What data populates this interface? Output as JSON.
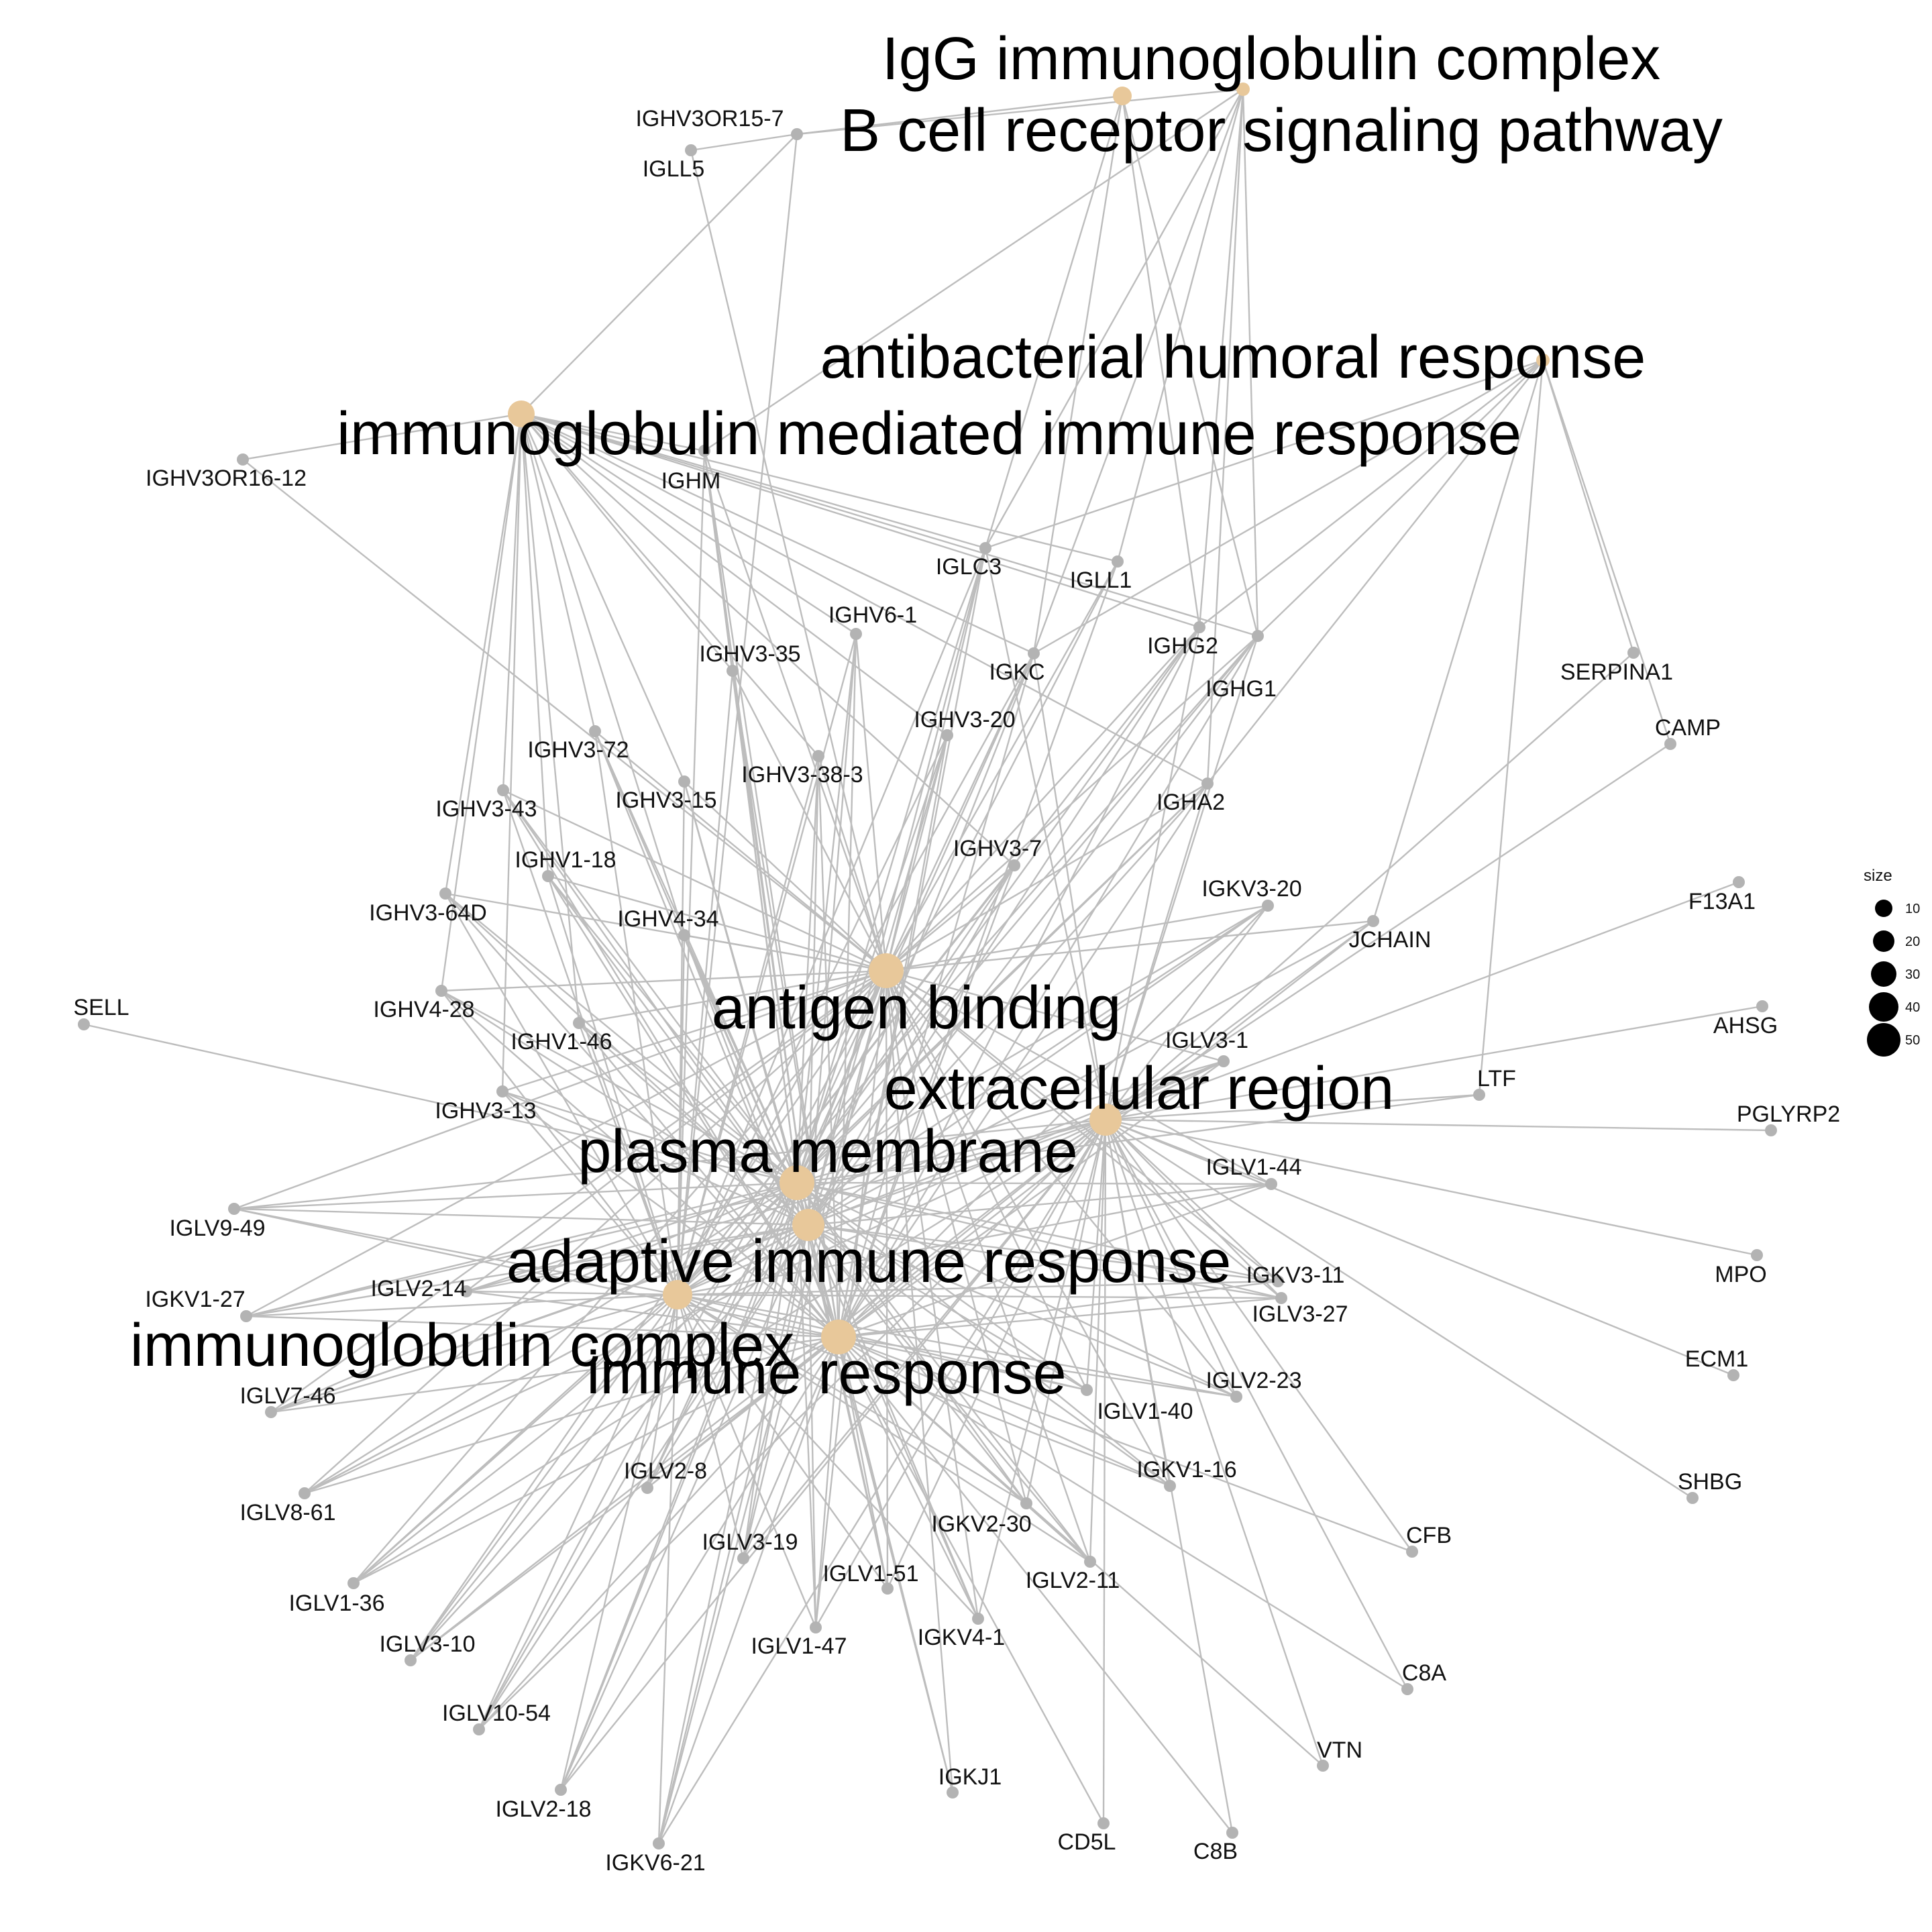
{
  "colors": {
    "term": "#e8c89a",
    "gene": "#b3b3b3",
    "edge": "#bdbdbd"
  },
  "legend": {
    "title": "size",
    "items": [
      "10",
      "20",
      "30",
      "40",
      "50"
    ]
  },
  "terms": [
    {
      "id": "igg",
      "label": "IgG immunoglobulin complex"
    },
    {
      "id": "bcr",
      "label": "B cell receptor signaling pathway"
    },
    {
      "id": "abh",
      "label": "antibacterial humoral response"
    },
    {
      "id": "imr",
      "label": "immunoglobulin mediated immune response"
    },
    {
      "id": "ab",
      "label": "antigen binding"
    },
    {
      "id": "er",
      "label": "extracellular region"
    },
    {
      "id": "pm",
      "label": "plasma membrane"
    },
    {
      "id": "air",
      "label": "adaptive immune response"
    },
    {
      "id": "ic",
      "label": "immunoglobulin complex"
    },
    {
      "id": "ir",
      "label": "immune response"
    }
  ],
  "genes": [
    {
      "id": "IGHV3OR15-7",
      "label": "IGHV3OR15-7"
    },
    {
      "id": "IGLL5",
      "label": "IGLL5"
    },
    {
      "id": "IGHV3OR16-12",
      "label": "IGHV3OR16-12"
    },
    {
      "id": "IGHM",
      "label": "IGHM"
    },
    {
      "id": "IGLC3",
      "label": "IGLC3"
    },
    {
      "id": "IGLL1",
      "label": "IGLL1"
    },
    {
      "id": "IGHV6-1",
      "label": "IGHV6-1"
    },
    {
      "id": "IGHV3-35",
      "label": "IGHV3-35"
    },
    {
      "id": "IGKC",
      "label": "IGKC"
    },
    {
      "id": "IGHG2",
      "label": "IGHG2"
    },
    {
      "id": "IGHG1",
      "label": "IGHG1"
    },
    {
      "id": "SERPINA1",
      "label": "SERPINA1"
    },
    {
      "id": "CAMP",
      "label": "CAMP"
    },
    {
      "id": "IGHV3-20",
      "label": "IGHV3-20"
    },
    {
      "id": "IGHV3-72",
      "label": "IGHV3-72"
    },
    {
      "id": "IGHV3-38-3",
      "label": "IGHV3-38-3"
    },
    {
      "id": "IGHV3-15",
      "label": "IGHV3-15"
    },
    {
      "id": "IGHV3-43",
      "label": "IGHV3-43"
    },
    {
      "id": "IGHA2",
      "label": "IGHA2"
    },
    {
      "id": "IGHV1-18",
      "label": "IGHV1-18"
    },
    {
      "id": "IGHV3-7",
      "label": "IGHV3-7"
    },
    {
      "id": "IGHV3-64D",
      "label": "IGHV3-64D"
    },
    {
      "id": "IGKV3-20",
      "label": "IGKV3-20"
    },
    {
      "id": "F13A1",
      "label": "F13A1"
    },
    {
      "id": "IGHV4-34",
      "label": "IGHV4-34"
    },
    {
      "id": "JCHAIN",
      "label": "JCHAIN"
    },
    {
      "id": "SELL",
      "label": "SELL"
    },
    {
      "id": "IGHV4-28",
      "label": "IGHV4-28"
    },
    {
      "id": "AHSG",
      "label": "AHSG"
    },
    {
      "id": "IGHV1-46",
      "label": "IGHV1-46"
    },
    {
      "id": "IGLV3-1",
      "label": "IGLV3-1"
    },
    {
      "id": "LTF",
      "label": "LTF"
    },
    {
      "id": "IGHV3-13",
      "label": "IGHV3-13"
    },
    {
      "id": "PGLYRP2",
      "label": "PGLYRP2"
    },
    {
      "id": "IGLV1-44",
      "label": "IGLV1-44"
    },
    {
      "id": "IGLV9-49",
      "label": "IGLV9-49"
    },
    {
      "id": "MPO",
      "label": "MPO"
    },
    {
      "id": "IGKV3-11",
      "label": "IGKV3-11"
    },
    {
      "id": "IGKV1-27",
      "label": "IGKV1-27"
    },
    {
      "id": "IGLV2-14",
      "label": "IGLV2-14"
    },
    {
      "id": "IGLV3-27",
      "label": "IGLV3-27"
    },
    {
      "id": "ECM1",
      "label": "ECM1"
    },
    {
      "id": "IGLV7-46",
      "label": "IGLV7-46"
    },
    {
      "id": "IGLV2-23",
      "label": "IGLV2-23"
    },
    {
      "id": "IGLV1-40",
      "label": "IGLV1-40"
    },
    {
      "id": "IGKV1-16",
      "label": "IGKV1-16"
    },
    {
      "id": "SHBG",
      "label": "SHBG"
    },
    {
      "id": "IGLV2-8",
      "label": "IGLV2-8"
    },
    {
      "id": "IGLV8-61",
      "label": "IGLV8-61"
    },
    {
      "id": "IGKV2-30",
      "label": "IGKV2-30"
    },
    {
      "id": "CFB",
      "label": "CFB"
    },
    {
      "id": "IGLV3-19",
      "label": "IGLV3-19"
    },
    {
      "id": "IGLV1-51",
      "label": "IGLV1-51"
    },
    {
      "id": "IGLV2-11",
      "label": "IGLV2-11"
    },
    {
      "id": "IGLV1-36",
      "label": "IGLV1-36"
    },
    {
      "id": "IGLV3-10",
      "label": "IGLV3-10"
    },
    {
      "id": "IGLV1-47",
      "label": "IGLV1-47"
    },
    {
      "id": "IGKV4-1",
      "label": "IGKV4-1"
    },
    {
      "id": "C8A",
      "label": "C8A"
    },
    {
      "id": "IGLV10-54",
      "label": "IGLV10-54"
    },
    {
      "id": "VTN",
      "label": "VTN"
    },
    {
      "id": "IGKJ1",
      "label": "IGKJ1"
    },
    {
      "id": "IGLV2-18",
      "label": "IGLV2-18"
    },
    {
      "id": "CD5L",
      "label": "CD5L"
    },
    {
      "id": "C8B",
      "label": "C8B"
    },
    {
      "id": "IGKV6-21",
      "label": "IGKV6-21"
    }
  ],
  "edges": [
    [
      "igg",
      "IGHV3OR15-7"
    ],
    [
      "bcr",
      "IGHV3OR15-7"
    ],
    [
      "imr",
      "IGHV3OR15-7"
    ],
    [
      "IGLL5",
      "IGHV3OR15-7"
    ],
    [
      "ab",
      "IGLL5"
    ],
    [
      "ic",
      "IGHV3OR15-7"
    ],
    [
      "imr",
      "IGHV3OR16-12"
    ],
    [
      "ab",
      "IGHV3OR16-12"
    ],
    [
      "bcr",
      "IGHM"
    ],
    [
      "imr",
      "IGHM"
    ],
    [
      "ab",
      "IGHM"
    ],
    [
      "pm",
      "IGHM"
    ],
    [
      "air",
      "IGHM"
    ],
    [
      "ic",
      "IGHM"
    ],
    [
      "ir",
      "IGHM"
    ],
    [
      "igg",
      "IGLC3"
    ],
    [
      "bcr",
      "IGLC3"
    ],
    [
      "abh",
      "IGLC3"
    ],
    [
      "imr",
      "IGLC3"
    ],
    [
      "ab",
      "IGLC3"
    ],
    [
      "er",
      "IGLC3"
    ],
    [
      "pm",
      "IGLC3"
    ],
    [
      "air",
      "IGLC3"
    ],
    [
      "ic",
      "IGLC3"
    ],
    [
      "ir",
      "IGLC3"
    ],
    [
      "bcr",
      "IGLL1"
    ],
    [
      "imr",
      "IGLL1"
    ],
    [
      "ab",
      "IGLL1"
    ],
    [
      "pm",
      "IGLL1"
    ],
    [
      "ir",
      "IGLL1"
    ],
    [
      "imr",
      "IGHV6-1"
    ],
    [
      "ab",
      "IGHV6-1"
    ],
    [
      "pm",
      "IGHV6-1"
    ],
    [
      "air",
      "IGHV6-1"
    ],
    [
      "ic",
      "IGHV6-1"
    ],
    [
      "ir",
      "IGHV6-1"
    ],
    [
      "imr",
      "IGHV3-35"
    ],
    [
      "ab",
      "IGHV3-35"
    ],
    [
      "pm",
      "IGHV3-35"
    ],
    [
      "air",
      "IGHV3-35"
    ],
    [
      "ic",
      "IGHV3-35"
    ],
    [
      "ir",
      "IGHV3-35"
    ],
    [
      "igg",
      "IGKC"
    ],
    [
      "bcr",
      "IGKC"
    ],
    [
      "abh",
      "IGKC"
    ],
    [
      "imr",
      "IGKC"
    ],
    [
      "ab",
      "IGKC"
    ],
    [
      "er",
      "IGKC"
    ],
    [
      "pm",
      "IGKC"
    ],
    [
      "air",
      "IGKC"
    ],
    [
      "ic",
      "IGKC"
    ],
    [
      "ir",
      "IGKC"
    ],
    [
      "igg",
      "IGHG2"
    ],
    [
      "bcr",
      "IGHG2"
    ],
    [
      "abh",
      "IGHG2"
    ],
    [
      "imr",
      "IGHG2"
    ],
    [
      "ab",
      "IGHG2"
    ],
    [
      "er",
      "IGHG2"
    ],
    [
      "pm",
      "IGHG2"
    ],
    [
      "air",
      "IGHG2"
    ],
    [
      "ic",
      "IGHG2"
    ],
    [
      "ir",
      "IGHG2"
    ],
    [
      "igg",
      "IGHG1"
    ],
    [
      "bcr",
      "IGHG1"
    ],
    [
      "abh",
      "IGHG1"
    ],
    [
      "imr",
      "IGHG1"
    ],
    [
      "ab",
      "IGHG1"
    ],
    [
      "er",
      "IGHG1"
    ],
    [
      "pm",
      "IGHG1"
    ],
    [
      "air",
      "IGHG1"
    ],
    [
      "ic",
      "IGHG1"
    ],
    [
      "ir",
      "IGHG1"
    ],
    [
      "abh",
      "SERPINA1"
    ],
    [
      "er",
      "SERPINA1"
    ],
    [
      "abh",
      "CAMP"
    ],
    [
      "er",
      "CAMP"
    ],
    [
      "imr",
      "IGHV3-20"
    ],
    [
      "ab",
      "IGHV3-20"
    ],
    [
      "pm",
      "IGHV3-20"
    ],
    [
      "air",
      "IGHV3-20"
    ],
    [
      "ic",
      "IGHV3-20"
    ],
    [
      "ir",
      "IGHV3-20"
    ],
    [
      "imr",
      "IGHV3-72"
    ],
    [
      "ab",
      "IGHV3-72"
    ],
    [
      "pm",
      "IGHV3-72"
    ],
    [
      "air",
      "IGHV3-72"
    ],
    [
      "ic",
      "IGHV3-72"
    ],
    [
      "ir",
      "IGHV3-72"
    ],
    [
      "imr",
      "IGHV3-38-3"
    ],
    [
      "ab",
      "IGHV3-38-3"
    ],
    [
      "pm",
      "IGHV3-38-3"
    ],
    [
      "air",
      "IGHV3-38-3"
    ],
    [
      "ic",
      "IGHV3-38-3"
    ],
    [
      "ir",
      "IGHV3-38-3"
    ],
    [
      "imr",
      "IGHV3-15"
    ],
    [
      "ab",
      "IGHV3-15"
    ],
    [
      "pm",
      "IGHV3-15"
    ],
    [
      "air",
      "IGHV3-15"
    ],
    [
      "ic",
      "IGHV3-15"
    ],
    [
      "ir",
      "IGHV3-15"
    ],
    [
      "imr",
      "IGHV3-43"
    ],
    [
      "ab",
      "IGHV3-43"
    ],
    [
      "pm",
      "IGHV3-43"
    ],
    [
      "air",
      "IGHV3-43"
    ],
    [
      "ic",
      "IGHV3-43"
    ],
    [
      "ir",
      "IGHV3-43"
    ],
    [
      "bcr",
      "IGHA2"
    ],
    [
      "abh",
      "IGHA2"
    ],
    [
      "imr",
      "IGHA2"
    ],
    [
      "ab",
      "IGHA2"
    ],
    [
      "er",
      "IGHA2"
    ],
    [
      "pm",
      "IGHA2"
    ],
    [
      "air",
      "IGHA2"
    ],
    [
      "ic",
      "IGHA2"
    ],
    [
      "ir",
      "IGHA2"
    ],
    [
      "imr",
      "IGHV1-18"
    ],
    [
      "ab",
      "IGHV1-18"
    ],
    [
      "pm",
      "IGHV1-18"
    ],
    [
      "air",
      "IGHV1-18"
    ],
    [
      "ic",
      "IGHV1-18"
    ],
    [
      "ir",
      "IGHV1-18"
    ],
    [
      "imr",
      "IGHV3-7"
    ],
    [
      "ab",
      "IGHV3-7"
    ],
    [
      "pm",
      "IGHV3-7"
    ],
    [
      "air",
      "IGHV3-7"
    ],
    [
      "ic",
      "IGHV3-7"
    ],
    [
      "ir",
      "IGHV3-7"
    ],
    [
      "imr",
      "IGHV3-64D"
    ],
    [
      "ab",
      "IGHV3-64D"
    ],
    [
      "pm",
      "IGHV3-64D"
    ],
    [
      "air",
      "IGHV3-64D"
    ],
    [
      "ic",
      "IGHV3-64D"
    ],
    [
      "ir",
      "IGHV3-64D"
    ],
    [
      "ab",
      "IGKV3-20"
    ],
    [
      "er",
      "IGKV3-20"
    ],
    [
      "pm",
      "IGKV3-20"
    ],
    [
      "air",
      "IGKV3-20"
    ],
    [
      "ic",
      "IGKV3-20"
    ],
    [
      "ir",
      "IGKV3-20"
    ],
    [
      "er",
      "F13A1"
    ],
    [
      "imr",
      "IGHV4-34"
    ],
    [
      "ab",
      "IGHV4-34"
    ],
    [
      "pm",
      "IGHV4-34"
    ],
    [
      "air",
      "IGHV4-34"
    ],
    [
      "ic",
      "IGHV4-34"
    ],
    [
      "ir",
      "IGHV4-34"
    ],
    [
      "abh",
      "JCHAIN"
    ],
    [
      "ab",
      "JCHAIN"
    ],
    [
      "er",
      "JCHAIN"
    ],
    [
      "ic",
      "JCHAIN"
    ],
    [
      "ir",
      "JCHAIN"
    ],
    [
      "pm",
      "SELL"
    ],
    [
      "imr",
      "IGHV4-28"
    ],
    [
      "ab",
      "IGHV4-28"
    ],
    [
      "pm",
      "IGHV4-28"
    ],
    [
      "air",
      "IGHV4-28"
    ],
    [
      "ic",
      "IGHV4-28"
    ],
    [
      "ir",
      "IGHV4-28"
    ],
    [
      "er",
      "AHSG"
    ],
    [
      "imr",
      "IGHV1-46"
    ],
    [
      "ab",
      "IGHV1-46"
    ],
    [
      "pm",
      "IGHV1-46"
    ],
    [
      "air",
      "IGHV1-46"
    ],
    [
      "ic",
      "IGHV1-46"
    ],
    [
      "ir",
      "IGHV1-46"
    ],
    [
      "ab",
      "IGLV3-1"
    ],
    [
      "er",
      "IGLV3-1"
    ],
    [
      "pm",
      "IGLV3-1"
    ],
    [
      "air",
      "IGLV3-1"
    ],
    [
      "ic",
      "IGLV3-1"
    ],
    [
      "ir",
      "IGLV3-1"
    ],
    [
      "abh",
      "LTF"
    ],
    [
      "er",
      "LTF"
    ],
    [
      "pm",
      "LTF"
    ],
    [
      "imr",
      "IGHV3-13"
    ],
    [
      "ab",
      "IGHV3-13"
    ],
    [
      "pm",
      "IGHV3-13"
    ],
    [
      "air",
      "IGHV3-13"
    ],
    [
      "ic",
      "IGHV3-13"
    ],
    [
      "ir",
      "IGHV3-13"
    ],
    [
      "er",
      "PGLYRP2"
    ],
    [
      "ab",
      "IGLV1-44"
    ],
    [
      "er",
      "IGLV1-44"
    ],
    [
      "pm",
      "IGLV1-44"
    ],
    [
      "air",
      "IGLV1-44"
    ],
    [
      "ic",
      "IGLV1-44"
    ],
    [
      "ir",
      "IGLV1-44"
    ],
    [
      "ab",
      "IGLV9-49"
    ],
    [
      "er",
      "IGLV9-49"
    ],
    [
      "pm",
      "IGLV9-49"
    ],
    [
      "air",
      "IGLV9-49"
    ],
    [
      "ic",
      "IGLV9-49"
    ],
    [
      "ir",
      "IGLV9-49"
    ],
    [
      "er",
      "MPO"
    ],
    [
      "ab",
      "IGKV3-11"
    ],
    [
      "er",
      "IGKV3-11"
    ],
    [
      "pm",
      "IGKV3-11"
    ],
    [
      "air",
      "IGKV3-11"
    ],
    [
      "ic",
      "IGKV3-11"
    ],
    [
      "ir",
      "IGKV3-11"
    ],
    [
      "ab",
      "IGKV1-27"
    ],
    [
      "er",
      "IGKV1-27"
    ],
    [
      "pm",
      "IGKV1-27"
    ],
    [
      "air",
      "IGKV1-27"
    ],
    [
      "ic",
      "IGKV1-27"
    ],
    [
      "ir",
      "IGKV1-27"
    ],
    [
      "ab",
      "IGLV2-14"
    ],
    [
      "er",
      "IGLV2-14"
    ],
    [
      "pm",
      "IGLV2-14"
    ],
    [
      "air",
      "IGLV2-14"
    ],
    [
      "ic",
      "IGLV2-14"
    ],
    [
      "ir",
      "IGLV2-14"
    ],
    [
      "ab",
      "IGLV3-27"
    ],
    [
      "er",
      "IGLV3-27"
    ],
    [
      "pm",
      "IGLV3-27"
    ],
    [
      "air",
      "IGLV3-27"
    ],
    [
      "ic",
      "IGLV3-27"
    ],
    [
      "ir",
      "IGLV3-27"
    ],
    [
      "er",
      "ECM1"
    ],
    [
      "ab",
      "IGLV7-46"
    ],
    [
      "er",
      "IGLV7-46"
    ],
    [
      "pm",
      "IGLV7-46"
    ],
    [
      "air",
      "IGLV7-46"
    ],
    [
      "ic",
      "IGLV7-46"
    ],
    [
      "ir",
      "IGLV7-46"
    ],
    [
      "ab",
      "IGLV2-23"
    ],
    [
      "er",
      "IGLV2-23"
    ],
    [
      "pm",
      "IGLV2-23"
    ],
    [
      "air",
      "IGLV2-23"
    ],
    [
      "ic",
      "IGLV2-23"
    ],
    [
      "ir",
      "IGLV2-23"
    ],
    [
      "ab",
      "IGLV1-40"
    ],
    [
      "er",
      "IGLV1-40"
    ],
    [
      "pm",
      "IGLV1-40"
    ],
    [
      "air",
      "IGLV1-40"
    ],
    [
      "ic",
      "IGLV1-40"
    ],
    [
      "ir",
      "IGLV1-40"
    ],
    [
      "ab",
      "IGKV1-16"
    ],
    [
      "er",
      "IGKV1-16"
    ],
    [
      "pm",
      "IGKV1-16"
    ],
    [
      "air",
      "IGKV1-16"
    ],
    [
      "ic",
      "IGKV1-16"
    ],
    [
      "ir",
      "IGKV1-16"
    ],
    [
      "er",
      "SHBG"
    ],
    [
      "ab",
      "IGLV2-8"
    ],
    [
      "er",
      "IGLV2-8"
    ],
    [
      "pm",
      "IGLV2-8"
    ],
    [
      "air",
      "IGLV2-8"
    ],
    [
      "ic",
      "IGLV2-8"
    ],
    [
      "ir",
      "IGLV2-8"
    ],
    [
      "ab",
      "IGLV8-61"
    ],
    [
      "er",
      "IGLV8-61"
    ],
    [
      "pm",
      "IGLV8-61"
    ],
    [
      "air",
      "IGLV8-61"
    ],
    [
      "ic",
      "IGLV8-61"
    ],
    [
      "ir",
      "IGLV8-61"
    ],
    [
      "ab",
      "IGKV2-30"
    ],
    [
      "er",
      "IGKV2-30"
    ],
    [
      "pm",
      "IGKV2-30"
    ],
    [
      "air",
      "IGKV2-30"
    ],
    [
      "ic",
      "IGKV2-30"
    ],
    [
      "ir",
      "IGKV2-30"
    ],
    [
      "er",
      "CFB"
    ],
    [
      "ir",
      "CFB"
    ],
    [
      "ab",
      "IGLV3-19"
    ],
    [
      "er",
      "IGLV3-19"
    ],
    [
      "pm",
      "IGLV3-19"
    ],
    [
      "air",
      "IGLV3-19"
    ],
    [
      "ic",
      "IGLV3-19"
    ],
    [
      "ir",
      "IGLV3-19"
    ],
    [
      "ab",
      "IGLV1-51"
    ],
    [
      "er",
      "IGLV1-51"
    ],
    [
      "pm",
      "IGLV1-51"
    ],
    [
      "air",
      "IGLV1-51"
    ],
    [
      "ic",
      "IGLV1-51"
    ],
    [
      "ir",
      "IGLV1-51"
    ],
    [
      "ab",
      "IGLV2-11"
    ],
    [
      "er",
      "IGLV2-11"
    ],
    [
      "pm",
      "IGLV2-11"
    ],
    [
      "air",
      "IGLV2-11"
    ],
    [
      "ic",
      "IGLV2-11"
    ],
    [
      "ir",
      "IGLV2-11"
    ],
    [
      "ab",
      "IGLV1-36"
    ],
    [
      "er",
      "IGLV1-36"
    ],
    [
      "pm",
      "IGLV1-36"
    ],
    [
      "air",
      "IGLV1-36"
    ],
    [
      "ic",
      "IGLV1-36"
    ],
    [
      "ir",
      "IGLV1-36"
    ],
    [
      "ab",
      "IGLV3-10"
    ],
    [
      "er",
      "IGLV3-10"
    ],
    [
      "pm",
      "IGLV3-10"
    ],
    [
      "air",
      "IGLV3-10"
    ],
    [
      "ic",
      "IGLV3-10"
    ],
    [
      "ir",
      "IGLV3-10"
    ],
    [
      "ab",
      "IGLV1-47"
    ],
    [
      "er",
      "IGLV1-47"
    ],
    [
      "pm",
      "IGLV1-47"
    ],
    [
      "air",
      "IGLV1-47"
    ],
    [
      "ic",
      "IGLV1-47"
    ],
    [
      "ir",
      "IGLV1-47"
    ],
    [
      "ab",
      "IGKV4-1"
    ],
    [
      "er",
      "IGKV4-1"
    ],
    [
      "pm",
      "IGKV4-1"
    ],
    [
      "air",
      "IGKV4-1"
    ],
    [
      "ic",
      "IGKV4-1"
    ],
    [
      "ir",
      "IGKV4-1"
    ],
    [
      "er",
      "C8A"
    ],
    [
      "ir",
      "C8A"
    ],
    [
      "ab",
      "IGLV10-54"
    ],
    [
      "er",
      "IGLV10-54"
    ],
    [
      "pm",
      "IGLV10-54"
    ],
    [
      "air",
      "IGLV10-54"
    ],
    [
      "ic",
      "IGLV10-54"
    ],
    [
      "ir",
      "IGLV10-54"
    ],
    [
      "er",
      "VTN"
    ],
    [
      "ir",
      "VTN"
    ],
    [
      "ab",
      "IGKJ1"
    ],
    [
      "pm",
      "IGKJ1"
    ],
    [
      "ir",
      "IGKJ1"
    ],
    [
      "ab",
      "IGLV2-18"
    ],
    [
      "er",
      "IGLV2-18"
    ],
    [
      "pm",
      "IGLV2-18"
    ],
    [
      "air",
      "IGLV2-18"
    ],
    [
      "ic",
      "IGLV2-18"
    ],
    [
      "ir",
      "IGLV2-18"
    ],
    [
      "er",
      "CD5L"
    ],
    [
      "ir",
      "CD5L"
    ],
    [
      "er",
      "C8B"
    ],
    [
      "ir",
      "C8B"
    ],
    [
      "ab",
      "IGKV6-21"
    ],
    [
      "er",
      "IGKV6-21"
    ],
    [
      "pm",
      "IGKV6-21"
    ],
    [
      "air",
      "IGKV6-21"
    ],
    [
      "ic",
      "IGKV6-21"
    ],
    [
      "ir",
      "IGKV6-21"
    ]
  ]
}
